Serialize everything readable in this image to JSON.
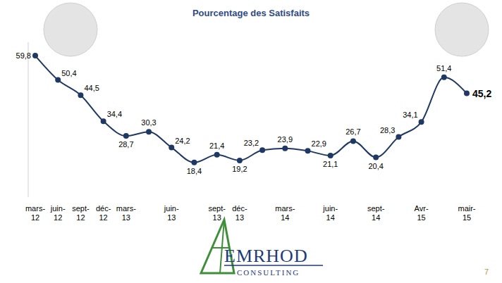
{
  "chart_data": {
    "type": "line",
    "title": "Pourcentage des Satisfaits",
    "categories": [
      "mars-12",
      "juin-12",
      "sept-12",
      "déc-12",
      "mars-13",
      null,
      "juin-13",
      null,
      "sept-13",
      "déc-13",
      null,
      "mars-14",
      null,
      "juin-14",
      null,
      "sept-14",
      null,
      "Avr-15",
      null,
      "mair-15"
    ],
    "values": [
      59.8,
      50.4,
      44.5,
      34.4,
      28.7,
      30.3,
      24.2,
      18.4,
      21.4,
      19.2,
      23.2,
      23.9,
      22.9,
      21.1,
      26.7,
      20.4,
      28.3,
      34.1,
      51.4,
      45.2
    ],
    "value_labels": [
      "59,8",
      "50,4",
      "44,5",
      "34,4",
      "28,7",
      "30,3",
      "24,2",
      "18,4",
      "21,4",
      "19,2",
      "23,2",
      "23,9",
      "22,9",
      "21,1",
      "26,7",
      "20,4",
      "28,3",
      "34,1",
      "51,4",
      "45,2"
    ],
    "color": "#1f3864",
    "ylim": [
      5,
      65
    ],
    "yticks": [],
    "tick_labels": "x",
    "grid": false,
    "data_labels": true,
    "marker": "circle",
    "line_style": "solid"
  },
  "logo": {
    "name": "EMRHOD",
    "subtitle": "CONSULTING"
  },
  "page_number": "7"
}
